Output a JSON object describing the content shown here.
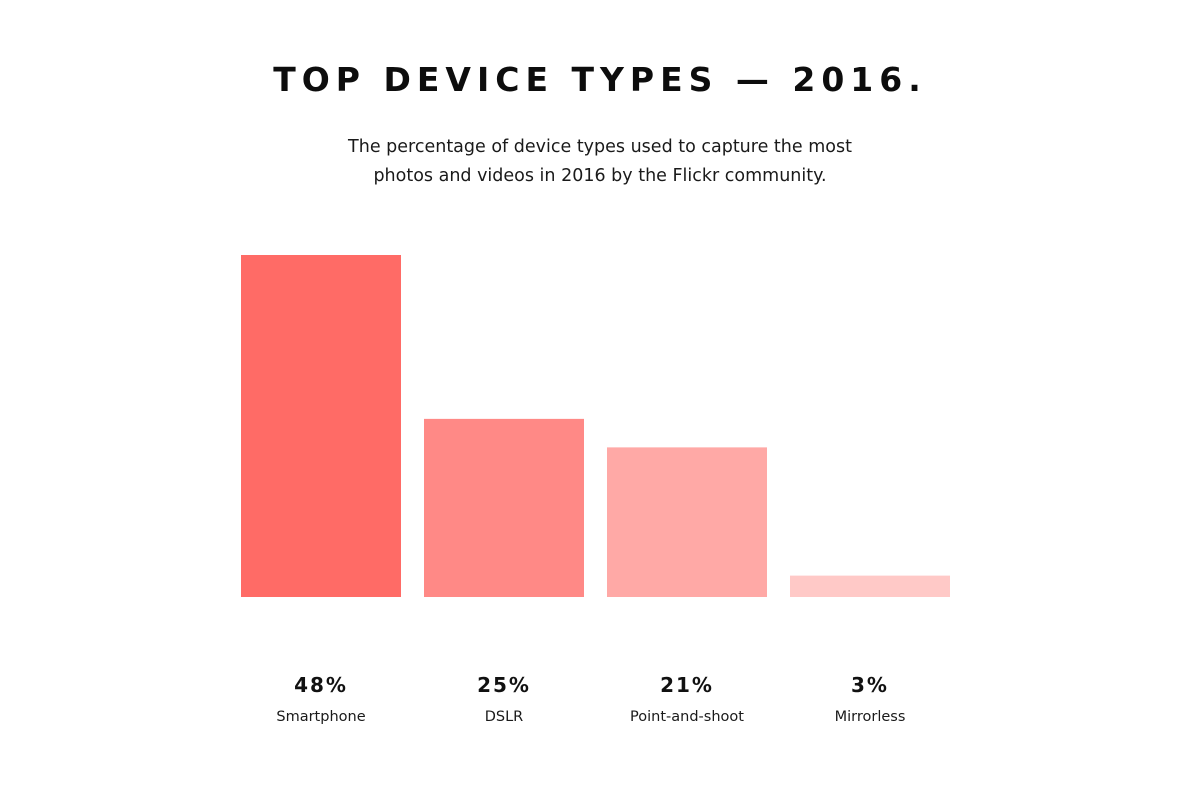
{
  "title": "TOP DEVICE TYPES — 2016.",
  "subtitle_lines": [
    "The percentage of device types used to capture the most",
    "photos and videos in 2016 by the Flickr community."
  ],
  "chart_data": {
    "type": "bar",
    "title": "TOP DEVICE TYPES — 2016.",
    "subtitle": "The percentage of device types used to capture the most photos and videos in 2016 by the Flickr community.",
    "categories": [
      "Smartphone",
      "DSLR",
      "Point-and-shoot",
      "Mirrorless"
    ],
    "values": [
      48,
      25,
      21,
      3
    ],
    "value_labels": [
      "48%",
      "25%",
      "21%",
      "3%"
    ],
    "unit": "%",
    "colors": [
      "#ff6b66",
      "#ff8986",
      "#ffa9a6",
      "#ffc9c7"
    ],
    "xlabel": "",
    "ylabel": "",
    "ylim": [
      0,
      48
    ],
    "grid": false,
    "legend": "none"
  }
}
